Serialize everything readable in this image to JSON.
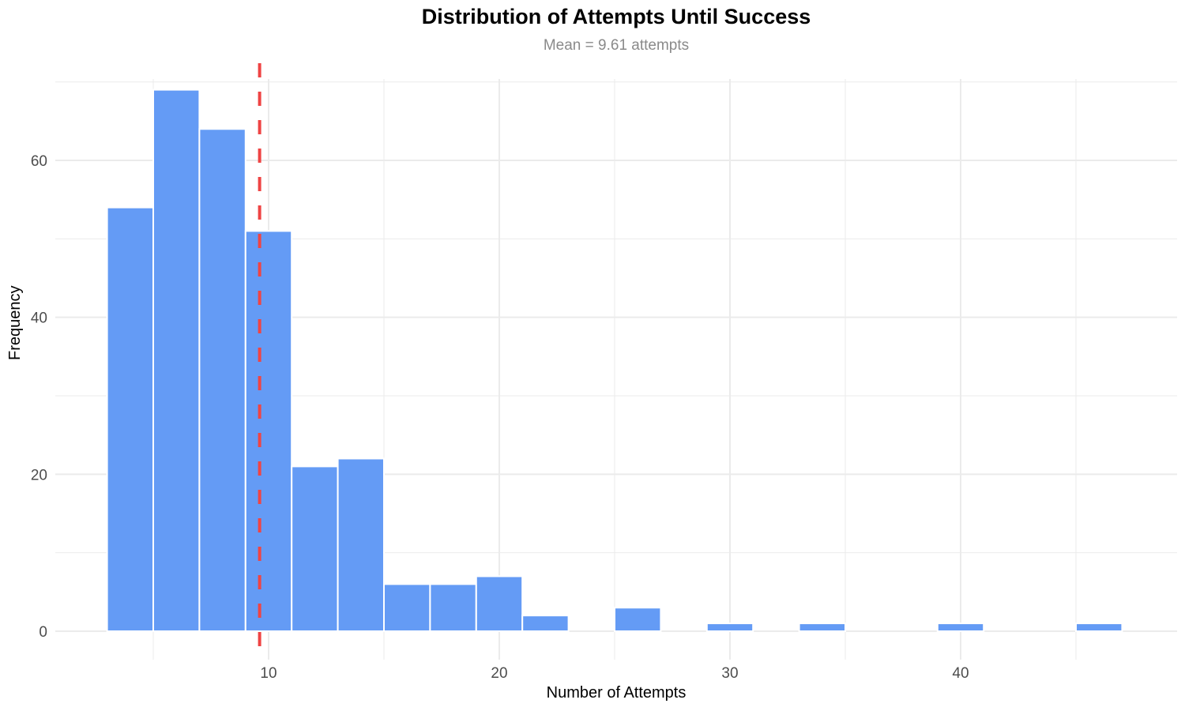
{
  "chart_data": {
    "type": "bar",
    "title": "Distribution of Attempts Until Success",
    "subtitle": "Mean = 9.61 attempts",
    "xlabel": "Number of Attempts",
    "ylabel": "Frequency",
    "bin_width": 2,
    "bin_start": 3,
    "categories": [
      "3-5",
      "5-7",
      "7-9",
      "9-11",
      "11-13",
      "13-15",
      "15-17",
      "17-19",
      "19-21",
      "21-23",
      "23-25",
      "25-27",
      "27-29",
      "29-31",
      "31-33",
      "33-35",
      "35-37",
      "37-39",
      "39-41",
      "41-43",
      "43-45",
      "45-47"
    ],
    "values": [
      54,
      69,
      64,
      51,
      21,
      22,
      6,
      6,
      7,
      2,
      0,
      3,
      0,
      1,
      0,
      1,
      0,
      0,
      1,
      0,
      0,
      1
    ],
    "mean_line": 9.61,
    "x_ticks": [
      10,
      20,
      30,
      40
    ],
    "y_ticks": [
      0,
      20,
      40,
      60
    ],
    "xlim": [
      1,
      49
    ],
    "ylim": [
      0,
      70
    ],
    "grid": true,
    "colors": {
      "bar": "#6199f5",
      "mean_line": "#ef4444",
      "grid": "#ebebeb",
      "tick_text": "#4d4d4d"
    }
  }
}
